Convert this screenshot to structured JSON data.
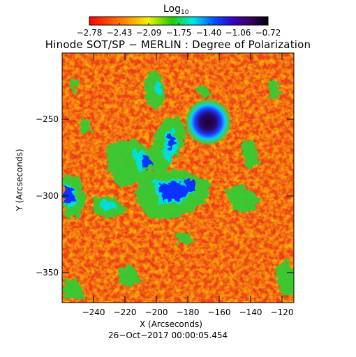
{
  "colorbar": {
    "title_main": "Log",
    "title_sub": "10",
    "tick_labels": [
      "−2.78",
      "−2.43",
      "−2.09",
      "−1.75",
      "−1.40",
      "−1.06",
      "−0.72"
    ],
    "range": [
      -2.78,
      -0.72
    ],
    "colormap": [
      "#ff0000",
      "#ff8800",
      "#ffff00",
      "#00cc00",
      "#00ffff",
      "#0000ff",
      "#000000"
    ]
  },
  "plot": {
    "title": "Hinode SOT/SP − MERLIN : Degree of Polarization",
    "x_title": "X (Arcseconds)",
    "y_title": "Y (Arcseconds)",
    "date": "26−Oct−2017 00:00:05.454",
    "x_ticks": [
      "−240",
      "−220",
      "−200",
      "−180",
      "−160",
      "−140",
      "−120"
    ],
    "y_ticks": [
      "−250",
      "−300",
      "−350"
    ],
    "x_range": [
      -260,
      -112
    ],
    "y_range": [
      -370,
      -214
    ],
    "background_level": "#f04a1a"
  }
}
